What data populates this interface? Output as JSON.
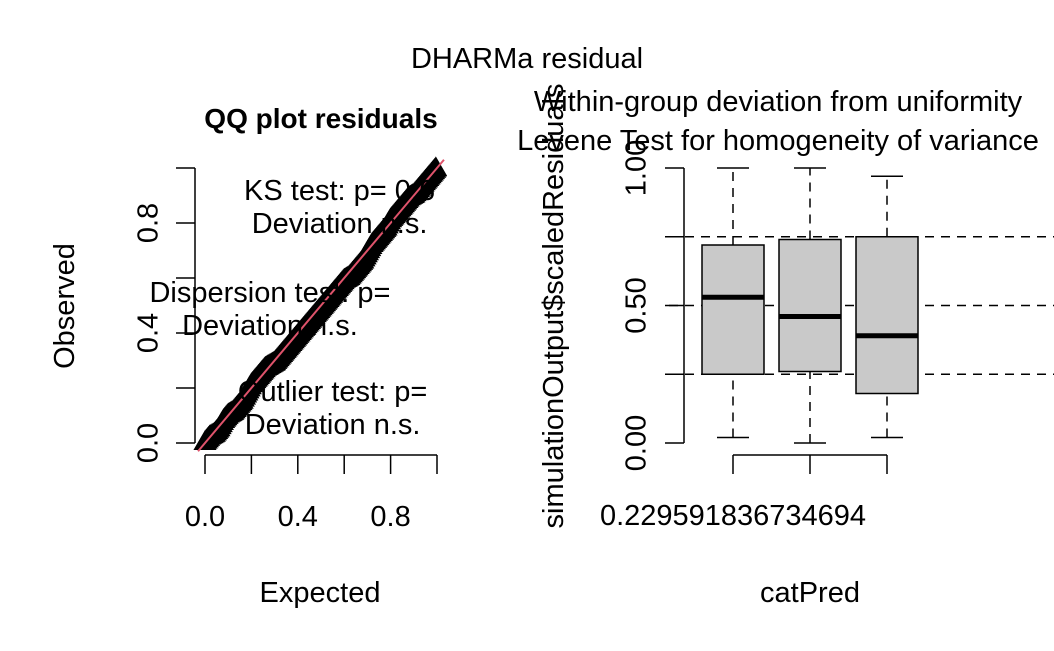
{
  "figure": {
    "main_title": "DHARMa residual"
  },
  "chart_data": [
    {
      "type": "scatter",
      "title": "QQ plot residuals",
      "xlabel": "Expected",
      "ylabel": "Observed",
      "xlim": [
        -0.04,
        1.0
      ],
      "ylim": [
        -0.03,
        1.0
      ],
      "x_ticks": [
        "0.0",
        "0.4",
        "0.8"
      ],
      "y_ticks": [
        "0.0",
        "0.4",
        "0.8"
      ],
      "grid": false,
      "reference_line": {
        "slope": 1,
        "intercept": 0,
        "color": "#DF536B"
      },
      "points": [
        [
          0.0,
          0.0
        ],
        [
          0.02,
          0.02
        ],
        [
          0.04,
          0.03
        ],
        [
          0.06,
          0.05
        ],
        [
          0.08,
          0.08
        ],
        [
          0.1,
          0.1
        ],
        [
          0.12,
          0.11
        ],
        [
          0.14,
          0.13
        ],
        [
          0.16,
          0.15
        ],
        [
          0.18,
          0.18
        ],
        [
          0.2,
          0.21
        ],
        [
          0.22,
          0.23
        ],
        [
          0.24,
          0.25
        ],
        [
          0.26,
          0.27
        ],
        [
          0.28,
          0.28
        ],
        [
          0.3,
          0.29
        ],
        [
          0.32,
          0.31
        ],
        [
          0.34,
          0.33
        ],
        [
          0.36,
          0.35
        ],
        [
          0.38,
          0.37
        ],
        [
          0.4,
          0.39
        ],
        [
          0.42,
          0.41
        ],
        [
          0.44,
          0.43
        ],
        [
          0.46,
          0.45
        ],
        [
          0.48,
          0.47
        ],
        [
          0.5,
          0.49
        ],
        [
          0.52,
          0.51
        ],
        [
          0.54,
          0.53
        ],
        [
          0.56,
          0.55
        ],
        [
          0.58,
          0.57
        ],
        [
          0.6,
          0.59
        ],
        [
          0.62,
          0.6
        ],
        [
          0.64,
          0.62
        ],
        [
          0.66,
          0.64
        ],
        [
          0.68,
          0.66
        ],
        [
          0.7,
          0.69
        ],
        [
          0.72,
          0.72
        ],
        [
          0.74,
          0.74
        ],
        [
          0.76,
          0.76
        ],
        [
          0.78,
          0.78
        ],
        [
          0.8,
          0.81
        ],
        [
          0.82,
          0.83
        ],
        [
          0.84,
          0.85
        ],
        [
          0.86,
          0.87
        ],
        [
          0.88,
          0.89
        ],
        [
          0.9,
          0.9
        ],
        [
          0.92,
          0.92
        ],
        [
          0.94,
          0.94
        ],
        [
          0.96,
          0.96
        ],
        [
          0.98,
          0.98
        ],
        [
          1.0,
          1.0
        ]
      ],
      "annotations": [
        {
          "text": "KS test: p= 0.6",
          "cx": 0.58,
          "cy": 0.92,
          "visible_chars": 14
        },
        {
          "text": "Deviation n.s.",
          "cx": 0.58,
          "cy": 0.8
        },
        {
          "text": "Dispersion test: p=",
          "cx": 0.28,
          "cy": 0.55
        },
        {
          "text": "Deviation n.s.",
          "cx": 0.28,
          "cy": 0.43
        },
        {
          "text": "Outlier test: p=",
          "cx": 0.55,
          "cy": 0.19
        },
        {
          "text": "Deviation n.s.",
          "cx": 0.55,
          "cy": 0.07
        }
      ]
    },
    {
      "type": "box",
      "title_lines": [
        "Within-group deviation from uniformity",
        "Levene Test for homogeneity of variance"
      ],
      "xlabel": "catPred",
      "ylabel": "simulationOutput$scaledResiduals",
      "ylim": [
        0,
        1
      ],
      "y_ticks": [
        "0.00",
        "0.50",
        "1.00"
      ],
      "x_tick_label": "0.229591836734694",
      "reference_lines": [
        0.25,
        0.5,
        0.75
      ],
      "box_fill": "#C9C9C9",
      "boxes": [
        {
          "whisker_low": 0.02,
          "q1": 0.25,
          "median": 0.53,
          "q3": 0.72,
          "whisker_high": 1.0
        },
        {
          "whisker_low": 0.0,
          "q1": 0.26,
          "median": 0.46,
          "q3": 0.74,
          "whisker_high": 1.0
        },
        {
          "whisker_low": 0.02,
          "q1": 0.18,
          "median": 0.39,
          "q3": 0.75,
          "whisker_high": 0.97
        }
      ]
    }
  ]
}
